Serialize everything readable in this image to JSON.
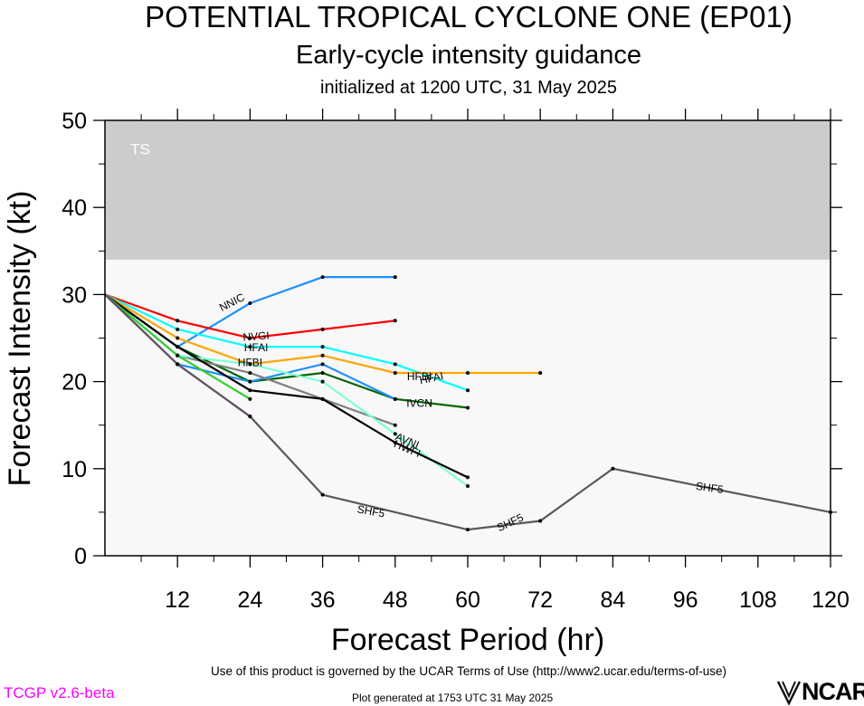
{
  "header": {
    "title": "POTENTIAL TROPICAL CYCLONE ONE (EP01)",
    "subtitle": "Early-cycle intensity guidance",
    "init": "initialized at 1200 UTC, 31 May 2025"
  },
  "footer": {
    "terms": "Use of this product is governed by the UCAR Terms of Use (http://www2.ucar.edu/terms-of-use)",
    "generated": "Plot generated at 1753 UTC   31 May 2025",
    "version": "TCGP v2.6-beta",
    "logo": "NCAR"
  },
  "chart_data": {
    "type": "line",
    "xlabel": "Forecast Period (hr)",
    "ylabel": "Forecast Intensity (kt)",
    "xlim": [
      0,
      120
    ],
    "ylim": [
      0,
      50
    ],
    "xticks": [
      12,
      24,
      36,
      48,
      60,
      72,
      84,
      96,
      108,
      120
    ],
    "yticks": [
      0,
      10,
      20,
      30,
      40,
      50
    ],
    "bands": [
      {
        "label": "TS",
        "from": 34,
        "to": 50,
        "color": "#cccccc"
      },
      {
        "label": "",
        "from": 0,
        "to": 34,
        "color": "#f8f8f8"
      }
    ],
    "series": [
      {
        "name": "NNIC",
        "color": "#1e90ff",
        "x": [
          0,
          12,
          24,
          36,
          48
        ],
        "y": [
          30,
          24,
          29,
          32,
          32
        ]
      },
      {
        "name": "NVGI",
        "color": "#ff0000",
        "x": [
          0,
          12,
          24,
          36,
          48
        ],
        "y": [
          30,
          27,
          25,
          26,
          27
        ]
      },
      {
        "name": "HFAI",
        "color": "#00ffff",
        "x": [
          0,
          12,
          24,
          36,
          48,
          60
        ],
        "y": [
          30,
          26,
          24,
          24,
          22,
          19
        ]
      },
      {
        "name": "HFBI",
        "color": "#ffa500",
        "x": [
          0,
          12,
          24,
          36,
          48,
          60,
          72
        ],
        "y": [
          30,
          25,
          22,
          23,
          21,
          21,
          21
        ]
      },
      {
        "name": "IVCN",
        "color": "#006400",
        "x": [
          0,
          12,
          24,
          36,
          48,
          60
        ],
        "y": [
          30,
          24,
          20,
          21,
          18,
          17
        ]
      },
      {
        "name": "",
        "color": "#1e90ff",
        "x": [
          12,
          24,
          36,
          48
        ],
        "y": [
          22,
          20,
          22,
          18
        ]
      },
      {
        "name": "",
        "color": "#808080",
        "x": [
          0,
          12,
          24,
          36,
          48
        ],
        "y": [
          30,
          23,
          21,
          18,
          15
        ]
      },
      {
        "name": "AVNI",
        "color": "#7fffd4",
        "x": [
          0,
          12,
          24,
          36,
          48,
          60
        ],
        "y": [
          30,
          23,
          22,
          20,
          14,
          8
        ]
      },
      {
        "name": "HWFI",
        "color": "#000000",
        "x": [
          0,
          12,
          24,
          36,
          48,
          60
        ],
        "y": [
          30,
          24,
          19,
          18,
          13,
          9
        ]
      },
      {
        "name": "",
        "color": "#32cd32",
        "x": [
          0,
          12,
          24
        ],
        "y": [
          30,
          23,
          18
        ]
      },
      {
        "name": "",
        "color": "#ff00ff",
        "x": [
          0,
          12,
          24
        ],
        "y": [
          30,
          22,
          16
        ]
      },
      {
        "name": "SHF5",
        "color": "#595959",
        "x": [
          0,
          12,
          24,
          36,
          60,
          72,
          84,
          120
        ],
        "y": [
          30,
          22,
          16,
          7,
          3,
          4,
          10,
          5
        ]
      }
    ]
  }
}
